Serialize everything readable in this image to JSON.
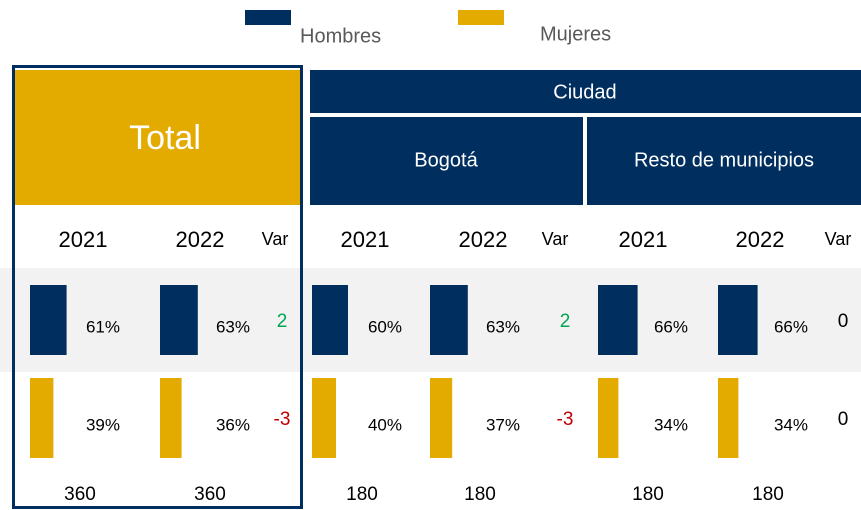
{
  "legend": [
    {
      "name": "Hombres",
      "color": "#002f5f"
    },
    {
      "name": "Mujeres",
      "color": "#e3ab00"
    }
  ],
  "ciudad_header": "Ciudad",
  "groups": [
    {
      "name": "Total",
      "years": [
        "2021",
        "2022"
      ],
      "var_label": "Var",
      "hombres": {
        "values": [
          61,
          63
        ],
        "value_labels": [
          "61%",
          "63%"
        ],
        "var": 2
      },
      "mujeres": {
        "values": [
          39,
          36
        ],
        "value_labels": [
          "39%",
          "36%"
        ],
        "var": -3
      },
      "n": [
        360,
        360
      ]
    },
    {
      "name": "Bogotá",
      "years": [
        "2021",
        "2022"
      ],
      "var_label": "Var",
      "hombres": {
        "values": [
          60,
          63
        ],
        "value_labels": [
          "60%",
          "63%"
        ],
        "var": 2
      },
      "mujeres": {
        "values": [
          40,
          37
        ],
        "value_labels": [
          "40%",
          "37%"
        ],
        "var": -3
      },
      "n": [
        180,
        180
      ]
    },
    {
      "name": "Resto de municipios",
      "years": [
        "2021",
        "2022"
      ],
      "var_label": "Var",
      "hombres": {
        "values": [
          66,
          66
        ],
        "value_labels": [
          "66%",
          "66%"
        ],
        "var": 0
      },
      "mujeres": {
        "values": [
          34,
          34
        ],
        "value_labels": [
          "34%",
          "34%"
        ],
        "var": 0
      },
      "n": [
        180,
        180
      ]
    }
  ]
}
